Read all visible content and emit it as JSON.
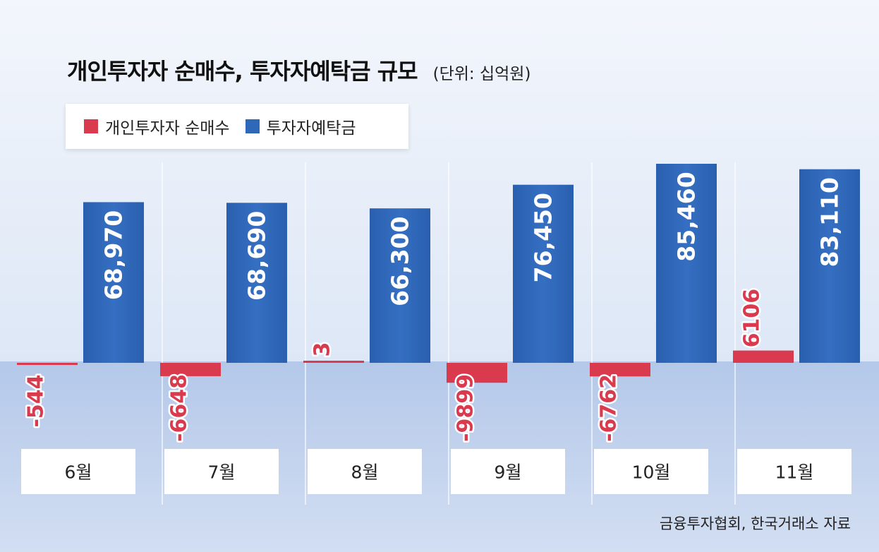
{
  "chart_data": {
    "type": "bar",
    "title": "개인투자자 순매수, 투자자예탁금 규모",
    "unit_note": "(단위: 십억원)",
    "categories": [
      "6월",
      "7월",
      "8월",
      "9월",
      "10월",
      "11월"
    ],
    "series": [
      {
        "name": "개인투자자 순매수",
        "values": [
          -544,
          -6648,
          3,
          -9899,
          -6762,
          6106
        ],
        "labels": [
          "-544",
          "-6648",
          "3",
          "-9899",
          "-6762",
          "6106"
        ],
        "color": "#d93a4e"
      },
      {
        "name": "투자자예탁금",
        "values": [
          68970,
          68690,
          66300,
          76450,
          85460,
          83110
        ],
        "labels": [
          "68,970",
          "68,690",
          "66,300",
          "76,450",
          "85,460",
          "83,110"
        ],
        "color": "#2f68b8"
      }
    ],
    "legend_position": "top-left",
    "source": "금융투자협회, 한국거래소 자료"
  }
}
